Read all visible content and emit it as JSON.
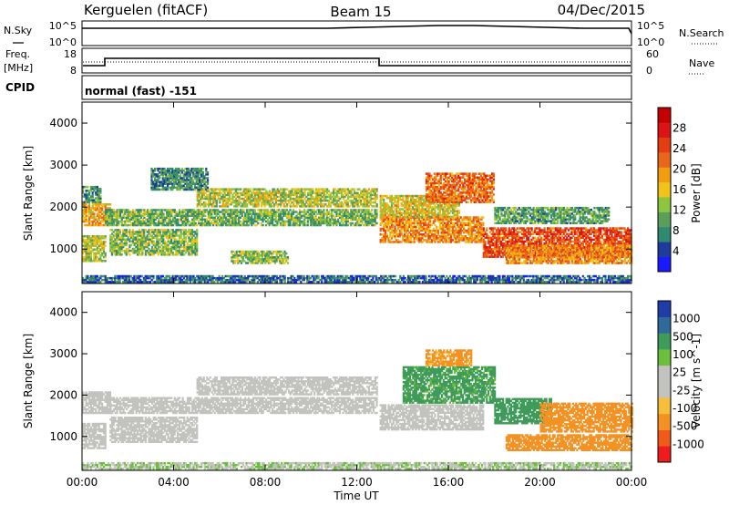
{
  "header": {
    "station": "Kerguelen (fitACF)",
    "beam": "Beam 15",
    "date": "04/Dec/2015"
  },
  "panels": {
    "nsky_label": "N.Sky",
    "nsearch_label": "N.Search",
    "nsky_ticks": [
      "10^5",
      "10^0"
    ],
    "nsearch_ticks": [
      "10^5",
      "10^0"
    ],
    "freq_label_1": "Freq.",
    "freq_label_2": "[MHz]",
    "freq_ticks": [
      "18",
      "8"
    ],
    "nave_label": "Nave",
    "nave_ticks": [
      "60",
      "0"
    ],
    "cpid_label": "CPID",
    "cpid_text": "normal (fast) -151"
  },
  "colors": {
    "power_scale": [
      "#1a1aff",
      "#1e3c9c",
      "#2f8a70",
      "#5a9e5a",
      "#8cc63f",
      "#f0c419",
      "#f39c12",
      "#e8671a",
      "#e53d12",
      "#dd1414",
      "#c40000"
    ],
    "velocity_scale": [
      "#ee1c1c",
      "#f25a1a",
      "#f39222",
      "#f6be3a",
      "#c2c2be",
      "#c2c2be",
      "#6bbf3a",
      "#3f9b5a",
      "#2e6a9a",
      "#1f3da8"
    ],
    "frame": "#000000"
  },
  "chart_data": [
    {
      "type": "heatmap",
      "title": "",
      "xlabel": "Time UT",
      "ylabel": "Slant Range [km]",
      "colorbar_label": "Power [dB]",
      "colorbar_ticks": [
        "28",
        "24",
        "20",
        "16",
        "12",
        "8",
        "4"
      ],
      "x_ticks": [
        "00:00",
        "04:00",
        "08:00",
        "12:00",
        "16:00",
        "20:00",
        "00:00"
      ],
      "y_ticks": [
        "4000",
        "3000",
        "2000",
        "1000"
      ],
      "xlim": [
        0,
        24
      ],
      "ylim": [
        180,
        4500
      ],
      "clim": [
        0,
        32
      ],
      "bands": [
        {
          "t0": 0.0,
          "t1": 1.0,
          "r0": 700,
          "r1": 1300,
          "val": 14
        },
        {
          "t0": 0.0,
          "t1": 1.2,
          "r0": 1550,
          "r1": 2050,
          "val": 18
        },
        {
          "t0": 0.0,
          "t1": 0.8,
          "r0": 2100,
          "r1": 2500,
          "val": 9
        },
        {
          "t0": 1.2,
          "t1": 5.0,
          "r0": 850,
          "r1": 1450,
          "val": 12
        },
        {
          "t0": 1.0,
          "t1": 12.9,
          "r0": 1550,
          "r1": 1950,
          "val": 11
        },
        {
          "t0": 5.0,
          "t1": 12.9,
          "r0": 2000,
          "r1": 2450,
          "val": 14
        },
        {
          "t0": 3.0,
          "t1": 5.5,
          "r0": 2400,
          "r1": 2900,
          "val": 8
        },
        {
          "t0": 6.5,
          "t1": 9.0,
          "r0": 650,
          "r1": 950,
          "val": 12
        },
        {
          "t0": 13.0,
          "t1": 17.5,
          "r0": 1150,
          "r1": 1750,
          "val": 20
        },
        {
          "t0": 13.0,
          "t1": 16.5,
          "r0": 1750,
          "r1": 2250,
          "val": 16
        },
        {
          "t0": 15.0,
          "t1": 18.0,
          "r0": 2100,
          "r1": 2800,
          "val": 22
        },
        {
          "t0": 17.5,
          "t1": 24.0,
          "r0": 800,
          "r1": 1500,
          "val": 24
        },
        {
          "t0": 18.5,
          "t1": 24.0,
          "r0": 650,
          "r1": 1100,
          "val": 20
        },
        {
          "t0": 18.0,
          "t1": 23.0,
          "r0": 1600,
          "r1": 2000,
          "val": 10
        },
        {
          "t0": 0.0,
          "t1": 24.0,
          "r0": 200,
          "r1": 360,
          "val": 6
        }
      ]
    },
    {
      "type": "heatmap",
      "title": "",
      "xlabel": "Time UT",
      "ylabel": "Slant Range [km]",
      "colorbar_label": "Velocity [m s^-1]",
      "colorbar_ticks": [
        "1000",
        "500",
        "100",
        "25",
        "-25",
        "-100",
        "-500",
        "-1000"
      ],
      "x_ticks": [
        "00:00",
        "04:00",
        "08:00",
        "12:00",
        "16:00",
        "20:00",
        "00:00"
      ],
      "y_ticks": [
        "4000",
        "3000",
        "2000",
        "1000"
      ],
      "xlim": [
        0,
        24
      ],
      "ylim": [
        180,
        4500
      ],
      "clim": [
        -1000,
        1000
      ],
      "bands": [
        {
          "t0": 0.0,
          "t1": 1.0,
          "r0": 700,
          "r1": 1300,
          "val": 0
        },
        {
          "t0": 0.0,
          "t1": 1.2,
          "r0": 1550,
          "r1": 2050,
          "val": 0
        },
        {
          "t0": 1.2,
          "t1": 5.0,
          "r0": 850,
          "r1": 1450,
          "val": 0
        },
        {
          "t0": 1.0,
          "t1": 12.9,
          "r0": 1550,
          "r1": 1950,
          "val": 0
        },
        {
          "t0": 5.0,
          "t1": 12.9,
          "r0": 2000,
          "r1": 2450,
          "val": 0
        },
        {
          "t0": 13.0,
          "t1": 17.5,
          "r0": 1150,
          "r1": 1750,
          "val": 0
        },
        {
          "t0": 14.0,
          "t1": 18.0,
          "r0": 1800,
          "r1": 2700,
          "val": 150
        },
        {
          "t0": 15.0,
          "t1": 17.0,
          "r0": 2700,
          "r1": 3100,
          "val": -150
        },
        {
          "t0": 18.0,
          "t1": 20.5,
          "r0": 1300,
          "r1": 1900,
          "val": 250
        },
        {
          "t0": 20.0,
          "t1": 24.0,
          "r0": 1100,
          "r1": 1800,
          "val": -300
        },
        {
          "t0": 18.5,
          "t1": 24.0,
          "r0": 650,
          "r1": 1050,
          "val": -250
        },
        {
          "t0": 0.0,
          "t1": 24.0,
          "r0": 200,
          "r1": 360,
          "val": 20
        }
      ]
    }
  ]
}
